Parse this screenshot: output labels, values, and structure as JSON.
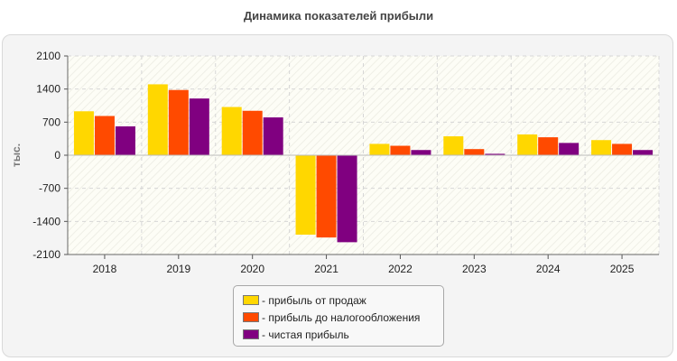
{
  "chart_data": {
    "type": "bar",
    "title": "Динамика показателей прибыли",
    "xlabel": "",
    "ylabel": "тыс.",
    "categories": [
      "2018",
      "2019",
      "2020",
      "2021",
      "2022",
      "2023",
      "2024",
      "2025"
    ],
    "series": [
      {
        "name": "- прибыль от продаж",
        "color": "#ffd700",
        "values": [
          930,
          1500,
          1020,
          -1680,
          240,
          400,
          440,
          320
        ]
      },
      {
        "name": "- прибыль до налогообложения",
        "color": "#ff4a00",
        "values": [
          830,
          1380,
          940,
          -1740,
          200,
          130,
          380,
          240
        ]
      },
      {
        "name": "- чистая прибыль",
        "color": "#800080",
        "values": [
          610,
          1200,
          800,
          -1840,
          110,
          30,
          260,
          110
        ]
      }
    ],
    "ylim": [
      -2100,
      2100
    ],
    "yticks": [
      2100,
      1400,
      700,
      0,
      -700,
      -1400,
      -2100
    ],
    "grid": true,
    "legend": "bottom-center"
  }
}
